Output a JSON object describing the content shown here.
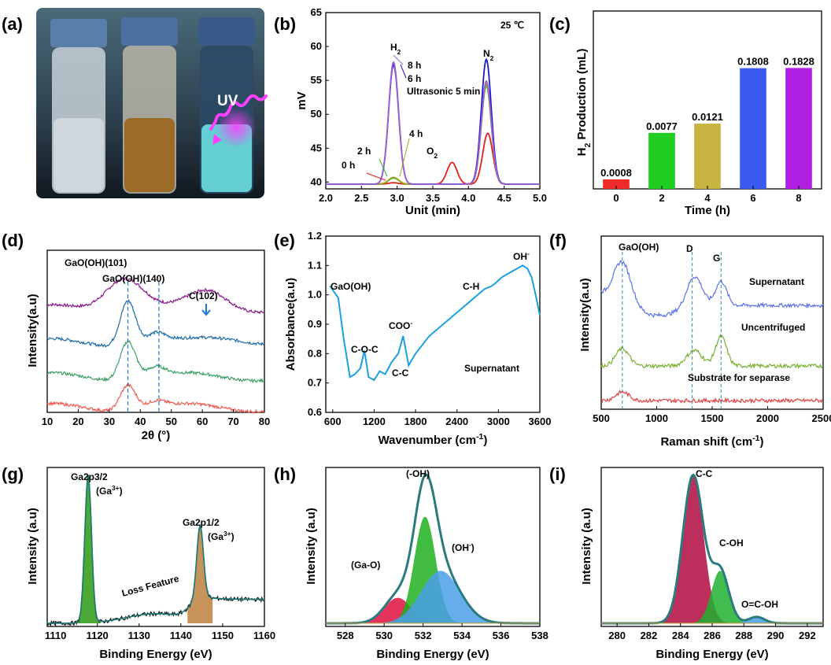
{
  "panel_labels": [
    "(a)",
    "(b)",
    "(c)",
    "(d)",
    "(e)",
    "(f)",
    "(g)",
    "(h)",
    "(i)"
  ],
  "photo": {
    "uv_label": "UV",
    "bottle_colors": [
      "#cfd6dc",
      "#9a6a26",
      "#6fe8e8"
    ]
  },
  "chart_data": [
    {
      "id": "b",
      "type": "line",
      "xlabel": "Unit (min)",
      "ylabel": "mV",
      "xlim": [
        2.0,
        5.0
      ],
      "ylim": [
        39,
        65
      ],
      "xticks": [
        "2.0",
        "2.5",
        "3.0",
        "3.5",
        "4.0",
        "4.5",
        "5.0"
      ],
      "yticks": [
        "40",
        "45",
        "50",
        "55",
        "60",
        "65"
      ],
      "temperature": "25 ℃",
      "annotations": {
        "h2": "H",
        "h2_sub": "2",
        "o2": "O",
        "o2_sub": "2",
        "n2": "N",
        "n2_sub": "2",
        "t0": "0 h",
        "t2": "2 h",
        "t4": "4 h",
        "t6": "6 h",
        "t8": "8 h",
        "ultra": "Ultrasonic 5 min"
      },
      "baseline": 39.7,
      "series": [
        {
          "color": "#e0201c",
          "peaks": [
            [
              2.95,
              0.2
            ],
            [
              3.77,
              3.2
            ],
            [
              4.27,
              7.5
            ]
          ]
        },
        {
          "color": "#22c022",
          "peaks": [
            [
              2.95,
              0.9
            ],
            [
              4.25,
              14.5
            ]
          ]
        },
        {
          "color": "#a8a020",
          "peaks": [
            [
              2.95,
              1.0
            ],
            [
              4.25,
              14.8
            ]
          ]
        },
        {
          "color": "#1a1ad0",
          "peaks": [
            [
              2.95,
              17.6
            ],
            [
              4.25,
              18.4
            ]
          ]
        },
        {
          "color": "#a060d0",
          "peaks": [
            [
              2.95,
              18.0
            ],
            [
              4.25,
              15.2
            ]
          ]
        }
      ]
    },
    {
      "id": "c",
      "type": "bar",
      "xlabel": "Time (h)",
      "ylabel": "H",
      "ylabel_sub": "2",
      "ylabel_rest": " Production (mL)",
      "categories": [
        "0",
        "2",
        "4",
        "6",
        "8"
      ],
      "values": [
        0.0008,
        0.0077,
        0.0121,
        0.1808,
        0.1828
      ],
      "value_labels": [
        "0.0008",
        "0.0077",
        "0.0121",
        "0.1808",
        "0.1828"
      ],
      "colors": [
        "#ee2a2a",
        "#20cc20",
        "#c8b440",
        "#3a5af0",
        "#b020e0"
      ]
    },
    {
      "id": "d",
      "type": "line",
      "xlabel": "2θ (°)",
      "ylabel": "Intensity(a.u)",
      "xlim": [
        10,
        80
      ],
      "xticks": [
        "10",
        "20",
        "30",
        "40",
        "50",
        "60",
        "70",
        "80"
      ],
      "annotations": {
        "p1": "GaO(OH)(101)",
        "p2": "GaO(OH)(140)",
        "p3": "C(102)"
      },
      "series": [
        {
          "color": "#8a1a8a",
          "offset": 0.64,
          "peaks": [
            [
              35,
              0.21,
              6
            ],
            [
              62,
              0.1,
              6
            ]
          ]
        },
        {
          "color": "#1a6aa8",
          "offset": 0.43,
          "peaks": [
            [
              36,
              0.28,
              2.5
            ],
            [
              45,
              0.06,
              3
            ],
            [
              70,
              0.03,
              8
            ]
          ]
        },
        {
          "color": "#3aa060",
          "offset": 0.22,
          "peaks": [
            [
              36,
              0.24,
              2.5
            ],
            [
              45,
              0.06,
              3
            ]
          ]
        },
        {
          "color": "#f05a50",
          "offset": 0.03,
          "peaks": [
            [
              36,
              0.16,
              2.5
            ],
            [
              45,
              0.04,
              3
            ]
          ]
        }
      ]
    },
    {
      "id": "e",
      "type": "line",
      "xlabel": "Wavenumber (cm",
      "xlabel_sup": "-1",
      "xlabel_end": ")",
      "ylabel": "Absorbance(a.u)",
      "xlim": [
        500,
        3600
      ],
      "ylim": [
        0.6,
        1.2
      ],
      "xticks": [
        "600",
        "1200",
        "1800",
        "2400",
        "3000",
        "3600"
      ],
      "yticks": [
        "0.6",
        "0.7",
        "0.8",
        "0.9",
        "1.0",
        "1.1",
        "1.2"
      ],
      "annotations": {
        "gaooh": "GaO(OH)",
        "coc": "C-O-C",
        "coo": "COO",
        "coo_sup": "-",
        "cc": "C-C",
        "ch": "C-H",
        "oh": "OH",
        "oh_sup": "-",
        "sample": "Supernatant"
      },
      "series": [
        {
          "color": "#1aa0e0",
          "x": [
            560,
            620,
            680,
            760,
            850,
            920,
            1000,
            1060,
            1120,
            1200,
            1280,
            1360,
            1450,
            1550,
            1620,
            1700,
            1800,
            2000,
            2200,
            2400,
            2600,
            2800,
            2900,
            2960,
            3050,
            3200,
            3350,
            3420,
            3480,
            3540,
            3600
          ],
          "y": [
            1.03,
            1.01,
            0.99,
            0.85,
            0.72,
            0.73,
            0.75,
            0.81,
            0.72,
            0.71,
            0.74,
            0.73,
            0.77,
            0.8,
            0.86,
            0.76,
            0.8,
            0.86,
            0.9,
            0.94,
            0.98,
            1.02,
            1.03,
            1.04,
            1.06,
            1.08,
            1.1,
            1.09,
            1.06,
            1.0,
            0.93
          ]
        }
      ]
    },
    {
      "id": "f",
      "type": "line",
      "xlabel": "Raman shift (cm",
      "xlabel_sup": "-1",
      "xlabel_end": ")",
      "ylabel": "Intensity(a.u)",
      "xlim": [
        500,
        2500
      ],
      "xticks": [
        "500",
        "1000",
        "1500",
        "2000",
        "2500"
      ],
      "annotations": {
        "gaooh": "GaO(OH)",
        "d": "D",
        "g": "G"
      },
      "series": [
        {
          "name": "Supernatant",
          "color": "#5a70e8",
          "offset": 0.6,
          "peaks": [
            [
              690,
              0.25,
              80
            ],
            [
              1340,
              0.18,
              70
            ],
            [
              1580,
              0.14,
              50
            ]
          ]
        },
        {
          "name": "Uncentrifuged",
          "color": "#7ab030",
          "offset": 0.25,
          "peaks": [
            [
              690,
              0.1,
              60
            ],
            [
              1340,
              0.09,
              70
            ],
            [
              1580,
              0.17,
              50
            ]
          ]
        },
        {
          "name": "Substrate for separase",
          "color": "#e04040",
          "offset": 0.05,
          "peaks": [
            [
              690,
              0.05,
              60
            ]
          ]
        }
      ]
    },
    {
      "id": "g",
      "type": "line",
      "xlabel": "Binding Energy (eV)",
      "ylabel": "Intensity (a.u)",
      "xlim": [
        1108,
        1160
      ],
      "xticks": [
        "1110",
        "1120",
        "1130",
        "1140",
        "1150",
        "1160"
      ],
      "annotations": {
        "p1": "Ga2p3/2",
        "p1b": "(Ga",
        "p1b_sup": "3+",
        "p1b_end": ")",
        "p2": "Ga2p1/2",
        "p2b": "(Ga",
        "p2b_sup": "3+",
        "p2b_end": ")",
        "loss": "Loss Feature"
      },
      "peaks": [
        [
          1117.8,
          0.93,
          0.8
        ],
        [
          1144.6,
          0.46,
          0.8
        ]
      ]
    },
    {
      "id": "h",
      "type": "line",
      "xlabel": "Binding Energy (eV)",
      "ylabel": "Intensity (a.u)",
      "xlim": [
        527,
        538
      ],
      "xticks": [
        "528",
        "530",
        "532",
        "534",
        "536",
        "538"
      ],
      "annotations": {
        "oh": "(-OH)",
        "gao": "(Ga-O)",
        "ohm": "(OH",
        "ohm_sup": "-",
        "ohm_end": ")"
      },
      "components": [
        {
          "center": 530.7,
          "amp": 0.16,
          "width": 0.7,
          "color": "#e01040"
        },
        {
          "center": 532.1,
          "amp": 0.67,
          "width": 0.55,
          "color": "#20b020"
        },
        {
          "center": 532.9,
          "amp": 0.33,
          "width": 1.0,
          "color": "#4aa0e8"
        }
      ]
    },
    {
      "id": "i",
      "type": "line",
      "xlabel": "Binding Energy (eV)",
      "ylabel": "Intensity (a.u)",
      "xlim": [
        279,
        293
      ],
      "xticks": [
        "280",
        "282",
        "284",
        "286",
        "288",
        "290",
        "292"
      ],
      "annotations": {
        "cc": "C-C",
        "coh": "C-OH",
        "ocoh": "O=C-OH"
      },
      "components": [
        {
          "center": 284.8,
          "amp": 0.93,
          "width": 0.65,
          "color": "#b00a40"
        },
        {
          "center": 286.5,
          "amp": 0.33,
          "width": 0.55,
          "color": "#20b030"
        },
        {
          "center": 288.8,
          "amp": 0.04,
          "width": 0.5,
          "color": "#40a0e0"
        }
      ]
    }
  ]
}
